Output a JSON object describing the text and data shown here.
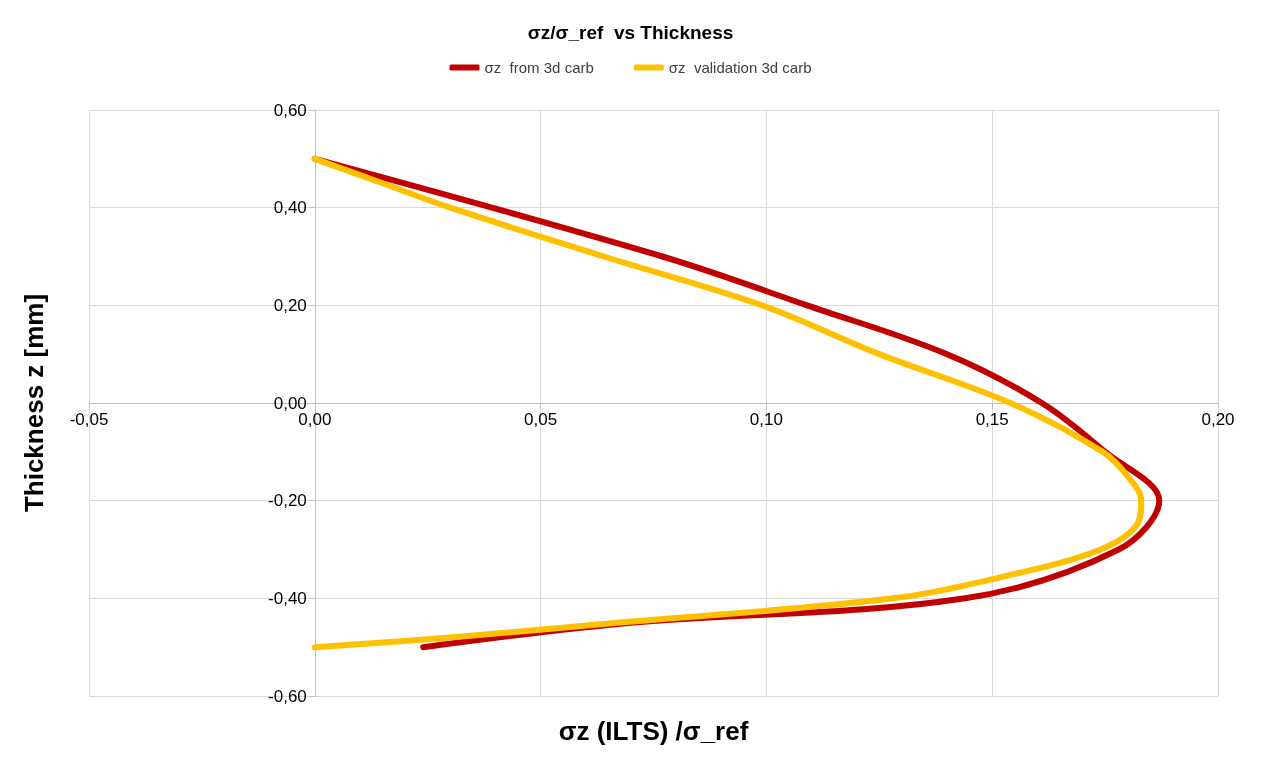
{
  "chart_data": {
    "type": "line",
    "title": "σz/σ_ref  vs Thickness",
    "xlabel": "σz (ILTS) /σ_ref",
    "ylabel": "Thickness z [mm]",
    "xlim": [
      -0.05,
      0.2
    ],
    "xticks": [
      {
        "value": -0.05,
        "label": "-0,05"
      },
      {
        "value": 0,
        "label": "0,00"
      },
      {
        "value": 0.05,
        "label": "0,05"
      },
      {
        "value": 0.1,
        "label": "0,10"
      },
      {
        "value": 0.15,
        "label": "0,15"
      },
      {
        "value": 0.2,
        "label": "0,20"
      }
    ],
    "ylim": [
      -0.6,
      0.6
    ],
    "yticks": [
      {
        "value": -0.6,
        "label": "-0,60"
      },
      {
        "value": -0.4,
        "label": "-0,40"
      },
      {
        "value": -0.2,
        "label": "-0,20"
      },
      {
        "value": 0,
        "label": "0,00"
      },
      {
        "value": 0.2,
        "label": "0,20"
      },
      {
        "value": 0.4,
        "label": "0,40"
      },
      {
        "value": 0.6,
        "label": "0,60"
      }
    ],
    "grid": true,
    "legend": "top",
    "marker": "none",
    "line_style": "solid",
    "series": [
      {
        "name": "σz  from 3d carb",
        "color": "#c00000",
        "x": [
          0,
          0.077,
          0.109,
          0.14,
          0.161,
          0.175,
          0.187,
          0.178,
          0.144,
          0.07,
          0.024
        ],
        "values": [
          0.5,
          0.3,
          0.2,
          0.1,
          0,
          -0.1,
          -0.2,
          -0.3,
          -0.4,
          -0.45,
          -0.5
        ]
      },
      {
        "name": "σz  validation 3d carb",
        "color": "#ffc000",
        "x": [
          0,
          0.015,
          0.03,
          0.064,
          0.099,
          0.125,
          0.154,
          0.1745,
          0.18,
          0.183,
          0.182,
          0.174,
          0.155,
          0.128,
          0.067,
          0.03,
          0
        ],
        "values": [
          0.5,
          0.45,
          0.4,
          0.3,
          0.2,
          0.1,
          0,
          -0.1,
          -0.15,
          -0.2,
          -0.25,
          -0.3,
          -0.35,
          -0.4,
          -0.45,
          -0.48,
          -0.5
        ]
      }
    ]
  }
}
